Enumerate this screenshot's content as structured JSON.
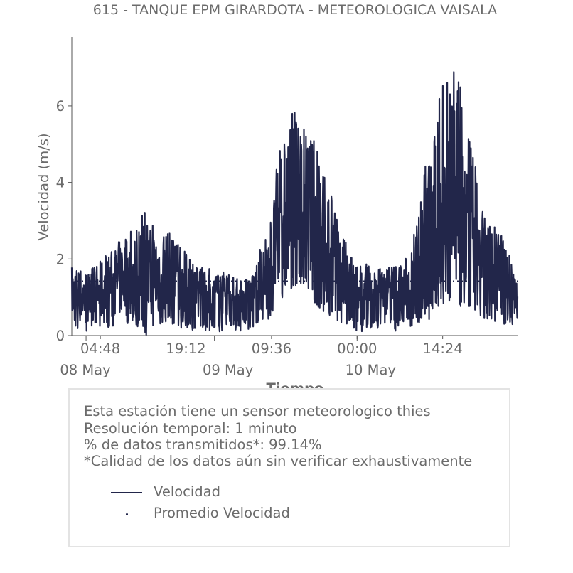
{
  "chart_data": {
    "type": "line",
    "title": "615 - TANQUE EPM GIRARDOTA - METEOROLOGICA VAISALA",
    "xlabel": "Tiempo",
    "ylabel": "Velocidad (m/s)",
    "ylim": [
      0,
      7.8
    ],
    "xlim": [
      "2024-05-08 00:00",
      "2024-05-11 03:00"
    ],
    "x_ticks": [
      {
        "time": "2024-05-08 04:48",
        "label": "04:48"
      },
      {
        "time": "2024-05-08 19:12",
        "label": "19:12"
      },
      {
        "time": "2024-05-09 09:36",
        "label": "09:36"
      },
      {
        "time": "2024-05-10 00:00",
        "label": "00:00"
      },
      {
        "time": "2024-05-10 14:24",
        "label": "14:24"
      }
    ],
    "x_minor_ticks": [
      "2024-05-08 02:24",
      "2024-05-09 00:00",
      "2024-05-10 00:00"
    ],
    "date_labels": [
      {
        "time": "2024-05-08 00:00",
        "label": "08 May"
      },
      {
        "time": "2024-05-09 00:00",
        "label": "09 May"
      },
      {
        "time": "2024-05-10 00:00",
        "label": "10 May"
      }
    ],
    "y_ticks": [
      0,
      2,
      4,
      6
    ],
    "grid": false,
    "series": [
      {
        "name": "Velocidad",
        "style": "solid",
        "color": "#22264a",
        "x": [
          "2024-05-08 00:00",
          "2024-05-08 03:00",
          "2024-05-08 06:00",
          "2024-05-08 09:00",
          "2024-05-08 12:00",
          "2024-05-08 15:00",
          "2024-05-08 18:00",
          "2024-05-08 21:00",
          "2024-05-09 00:00",
          "2024-05-09 03:00",
          "2024-05-09 06:00",
          "2024-05-09 09:00",
          "2024-05-09 12:00",
          "2024-05-09 15:00",
          "2024-05-09 18:00",
          "2024-05-09 21:00",
          "2024-05-10 00:00",
          "2024-05-10 03:00",
          "2024-05-10 06:00",
          "2024-05-10 09:00",
          "2024-05-10 12:00",
          "2024-05-10 15:00",
          "2024-05-10 18:00",
          "2024-05-10 21:00",
          "2024-05-11 00:00",
          "2024-05-11 03:00"
        ],
        "y": [
          1.1,
          1.0,
          1.2,
          1.6,
          1.3,
          1.7,
          1.4,
          1.0,
          1.1,
          0.9,
          0.8,
          1.6,
          3.3,
          3.6,
          2.6,
          1.7,
          1.0,
          1.0,
          1.1,
          1.2,
          2.4,
          3.6,
          3.2,
          1.9,
          1.6,
          1.1
        ],
        "max": [
          1.8,
          1.7,
          2.2,
          2.7,
          3.3,
          3.2,
          2.4,
          1.9,
          1.7,
          1.6,
          1.5,
          2.9,
          6.1,
          5.6,
          5.0,
          2.8,
          2.0,
          1.8,
          1.9,
          2.2,
          5.4,
          7.1,
          6.6,
          3.3,
          2.7,
          1.6
        ],
        "min": [
          0.1,
          0.1,
          0.2,
          0.3,
          0.2,
          0.3,
          0.2,
          0.1,
          0.1,
          0.1,
          0.1,
          0.3,
          1.1,
          1.3,
          0.6,
          0.3,
          0.1,
          0.1,
          0.1,
          0.2,
          0.5,
          0.9,
          0.6,
          0.3,
          0.2,
          0.3
        ]
      },
      {
        "name": "Promedio Velocidad",
        "style": "dotted",
        "color": "#22264a",
        "y": 1.42
      }
    ]
  },
  "info": {
    "lines": [
      "Esta estación tiene un sensor meteorologico thies",
      "Resolución temporal: 1 minuto",
      "% de datos transmitidos*: 99.14%",
      "*Calidad de los datos aún sin verificar exhaustivamente"
    ]
  },
  "legend": {
    "items": [
      {
        "label": "Velocidad",
        "style": "line"
      },
      {
        "label": "Promedio Velocidad",
        "style": "dot"
      }
    ]
  },
  "colors": {
    "series": "#22264a",
    "text": "#6b6b6b",
    "axis": "#555555",
    "box_border": "#e3e3e3"
  }
}
